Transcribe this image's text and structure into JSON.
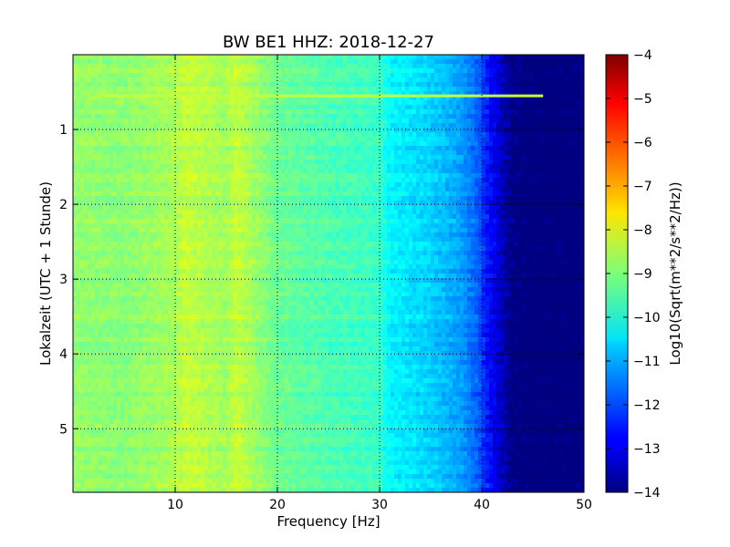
{
  "chart_data": {
    "type": "heatmap",
    "title": "BW BE1 HHZ: 2018-12-27",
    "xlabel": "Frequency [Hz]",
    "ylabel": "Lokalzeit (UTC + 1 Stunde)",
    "colorbar_label": "Log10(Sqrt(m**2/s**2/Hz))",
    "xlim": [
      0,
      50
    ],
    "ylim": [
      5.85,
      0
    ],
    "y_inverted": true,
    "x_ticks": [
      10,
      20,
      30,
      40,
      50
    ],
    "x_tick_labels": [
      "10",
      "20",
      "30",
      "40",
      "50"
    ],
    "y_ticks": [
      1,
      2,
      3,
      4,
      5
    ],
    "y_tick_labels": [
      "1",
      "2",
      "3",
      "4",
      "5"
    ],
    "colorbar_range": [
      -14,
      -4
    ],
    "colorbar_ticks": [
      -4,
      -5,
      -6,
      -7,
      -8,
      -9,
      -10,
      -11,
      -12,
      -13,
      -14
    ],
    "colorbar_tick_labels": [
      "−4",
      "−5",
      "−6",
      "−7",
      "−8",
      "−9",
      "−10",
      "−11",
      "−12",
      "−13",
      "−14"
    ],
    "colormap": "jet",
    "grid": true,
    "grid_style": "dotted",
    "spectral_profile": {
      "frequency_hz": [
        0,
        5,
        10,
        11,
        15,
        16,
        20,
        25,
        30,
        31,
        35,
        38,
        40,
        42,
        43,
        45,
        50
      ],
      "log_level": [
        -8.8,
        -8.9,
        -8.6,
        -8.3,
        -8.7,
        -8.3,
        -9.2,
        -9.5,
        -9.7,
        -10.3,
        -10.7,
        -11.2,
        -12.0,
        -13.2,
        -13.8,
        -14.0,
        -14.0
      ]
    },
    "features": [
      {
        "kind": "horizontal-line",
        "time_hour": 0.55,
        "freq_range_hz": [
          3,
          46
        ],
        "level": -8.3
      }
    ]
  }
}
